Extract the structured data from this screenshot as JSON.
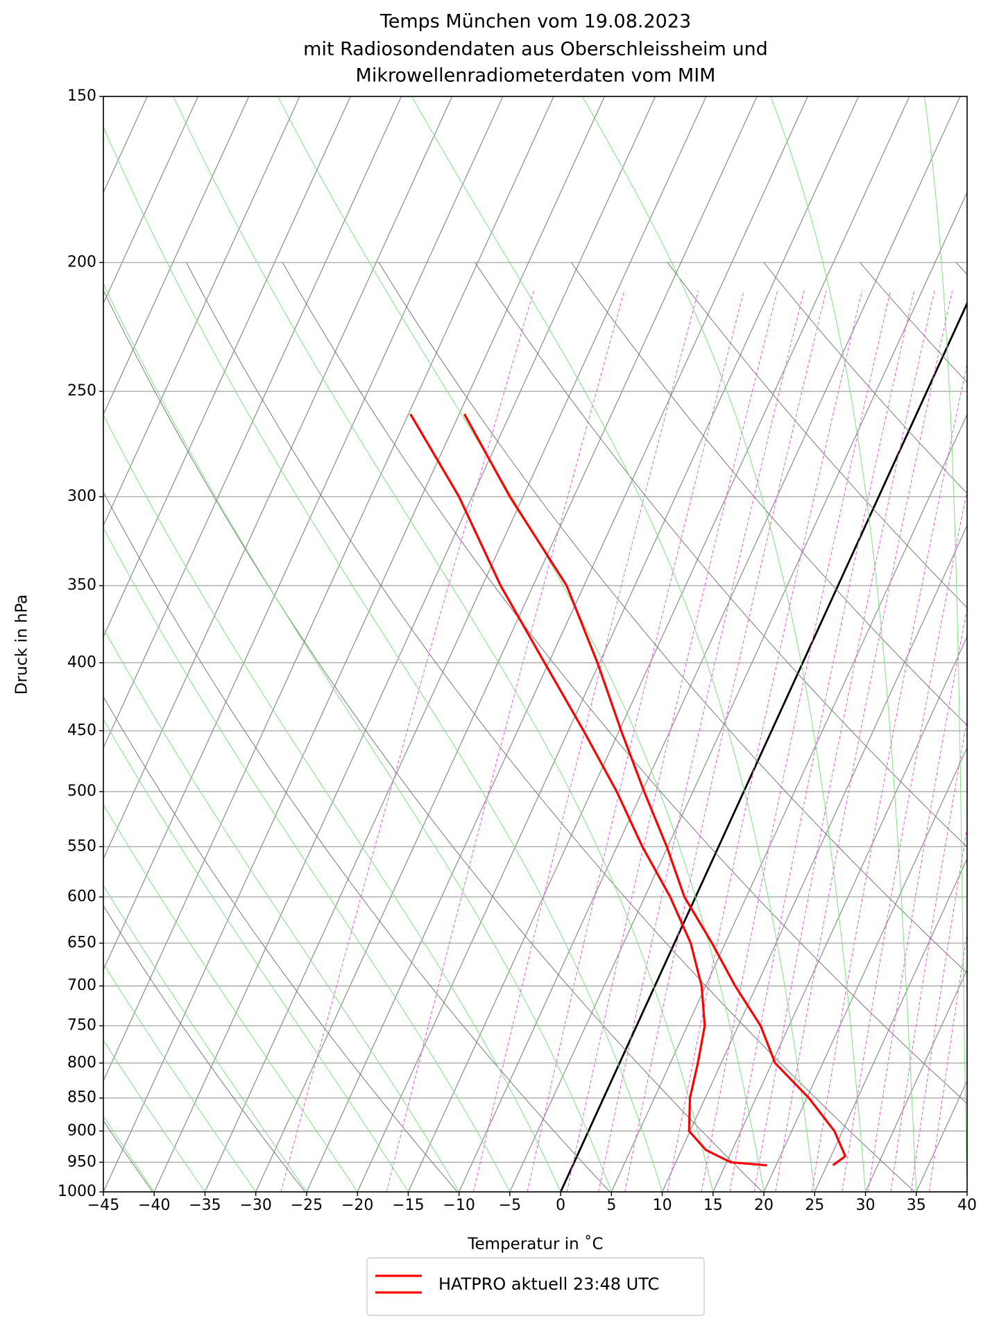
{
  "chart_data": {
    "type": "skewt",
    "title": [
      "Temps München vom 19.08.2023",
      "mit Radiosondendaten aus Oberschleissheim und",
      "Mikrowellenradiometerdaten vom MIM"
    ],
    "xlabel": "Temperatur in ˚C",
    "ylabel": "Druck in hPa",
    "xlim": [
      -45,
      40
    ],
    "xticks": [
      {
        "value": -45,
        "label": "−45"
      },
      {
        "value": -40,
        "label": "−40"
      },
      {
        "value": -35,
        "label": "−35"
      },
      {
        "value": -30,
        "label": "−30"
      },
      {
        "value": -25,
        "label": "−25"
      },
      {
        "value": -20,
        "label": "−20"
      },
      {
        "value": -15,
        "label": "−15"
      },
      {
        "value": -10,
        "label": "−10"
      },
      {
        "value": -5,
        "label": "−5"
      },
      0,
      5,
      10,
      15,
      20,
      25,
      30,
      35,
      40
    ],
    "ylim": [
      1000,
      150
    ],
    "yscale": "log",
    "yticks": [
      150,
      200,
      250,
      300,
      350,
      400,
      450,
      500,
      550,
      600,
      650,
      700,
      750,
      800,
      850,
      900,
      950,
      1000
    ],
    "grid": true,
    "legend": "lower center",
    "series": [
      {
        "name": "HATPRO aktuell 23:48 UTC",
        "color": "#ff0000",
        "pressure": [
          955,
          940,
          900,
          850,
          800,
          750,
          700,
          650,
          600,
          550,
          500,
          450,
          400,
          350,
          300,
          260
        ],
        "temperature": [
          25.6,
          26.4,
          24.2,
          20.2,
          15.3,
          12.2,
          7.9,
          3.7,
          -1.1,
          -5.1,
          -9.8,
          -14.8,
          -20.2,
          -26.7,
          -36.3,
          -44.5
        ],
        "dewpoint_pressure": [
          955,
          950,
          930,
          900,
          850,
          800,
          750,
          700,
          650,
          600,
          550,
          500,
          450,
          400,
          350,
          300,
          260
        ],
        "dewpoint": [
          19.1,
          15.4,
          12.4,
          9.9,
          8.5,
          7.7,
          6.7,
          4.6,
          1.6,
          -2.5,
          -7.5,
          -12.5,
          -18.5,
          -25.4,
          -33.2,
          -41.3,
          -49.8
        ]
      }
    ]
  }
}
